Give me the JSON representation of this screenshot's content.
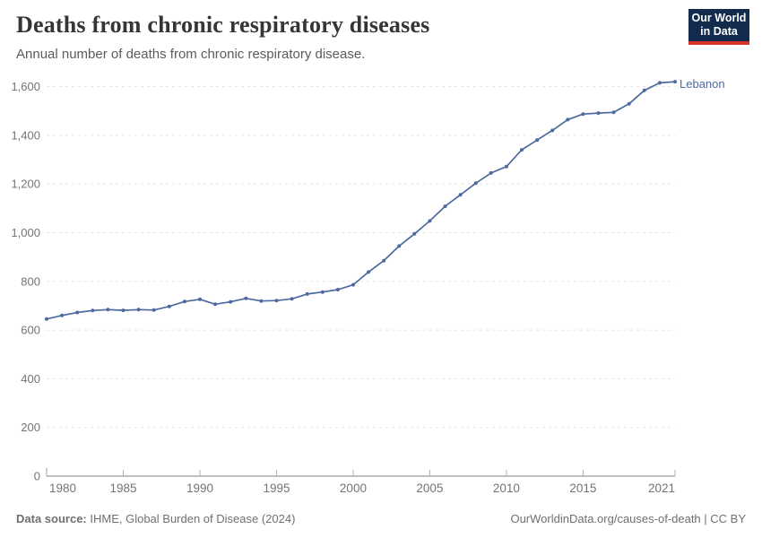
{
  "header": {
    "title": "Deaths from chronic respiratory diseases",
    "subtitle": "Annual number of deaths from chronic respiratory disease."
  },
  "logo": {
    "line1": "Our World",
    "line2": "in Data"
  },
  "colors": {
    "line": "#4c6a9f",
    "logo_bg": "#132b4d",
    "logo_red": "#d4342a",
    "gridline": "#e3e3e3",
    "axis": "#9a9a9a",
    "tick": "#b3b3b3",
    "axis_text": "#747474"
  },
  "annotations": {
    "series_label": "Lebanon"
  },
  "footer": {
    "source_label": "Data source:",
    "source_value": " IHME, Global Burden of Disease (2024)",
    "link": "OurWorldinData.org/causes-of-death | CC BY"
  },
  "chart_data": {
    "type": "line",
    "title": "Deaths from chronic respiratory diseases",
    "subtitle": "Annual number of deaths from chronic respiratory disease.",
    "xlabel": "",
    "ylabel": "",
    "xlim": [
      1980,
      2021
    ],
    "ylim": [
      0,
      1600
    ],
    "grid": "dashed-horizontal",
    "legend_position": "end-of-line-label",
    "x_ticks": [
      1980,
      1985,
      1990,
      1995,
      2000,
      2005,
      2010,
      2015,
      2021
    ],
    "y_ticks": [
      0,
      200,
      400,
      600,
      800,
      1000,
      1200,
      1400,
      1600
    ],
    "x": [
      1980,
      1981,
      1982,
      1983,
      1984,
      1985,
      1986,
      1987,
      1988,
      1989,
      1990,
      1991,
      1992,
      1993,
      1994,
      1995,
      1996,
      1997,
      1998,
      1999,
      2000,
      2001,
      2002,
      2003,
      2004,
      2005,
      2006,
      2007,
      2008,
      2009,
      2010,
      2011,
      2012,
      2013,
      2014,
      2015,
      2016,
      2017,
      2018,
      2019,
      2020,
      2021
    ],
    "series": [
      {
        "name": "Lebanon",
        "color": "#4c6a9f",
        "values": [
          645,
          660,
          672,
          680,
          684,
          681,
          684,
          682,
          697,
          717,
          726,
          706,
          716,
          730,
          719,
          721,
          728,
          748,
          756,
          766,
          786,
          838,
          885,
          945,
          995,
          1048,
          1108,
          1155,
          1203,
          1245,
          1271,
          1340,
          1380,
          1420,
          1464,
          1487,
          1491,
          1494,
          1529,
          1584,
          1615,
          1620
        ]
      }
    ]
  }
}
